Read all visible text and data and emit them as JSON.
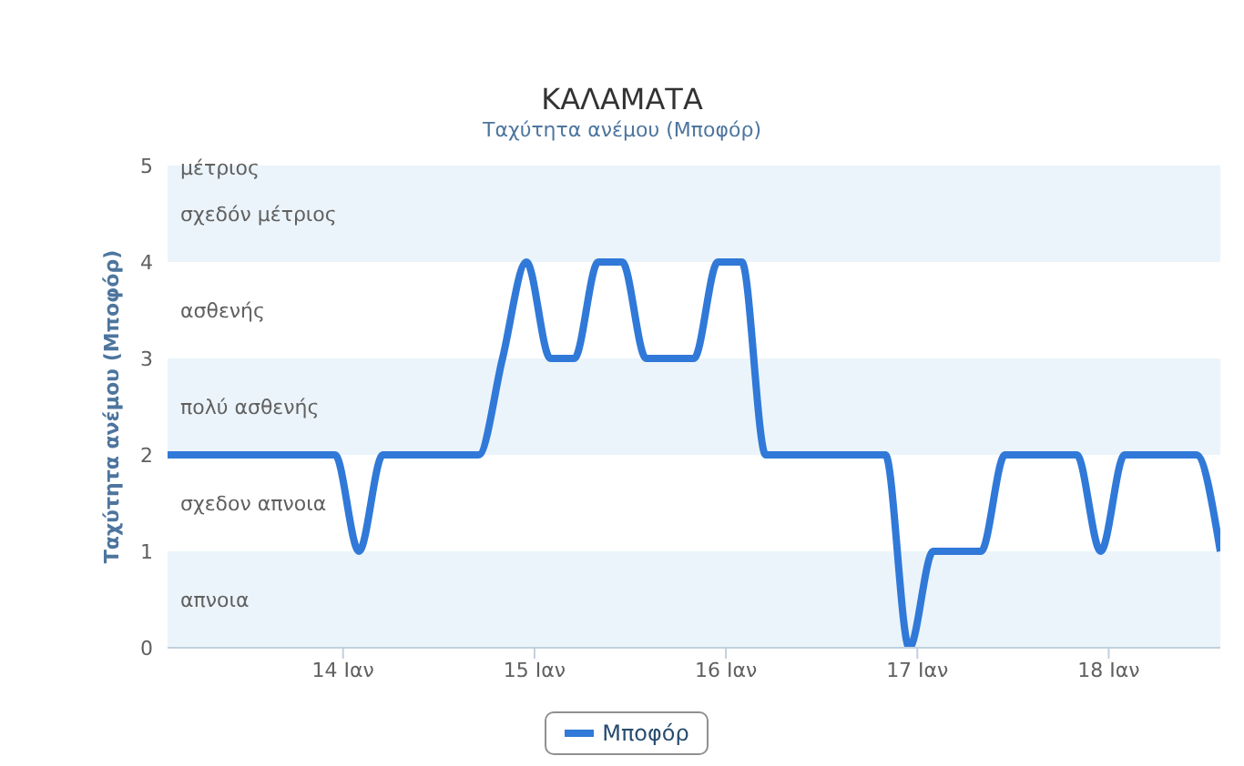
{
  "chart_data": {
    "type": "line",
    "title": "ΚΑΛΑΜΑΤΑ",
    "subtitle": "Ταχύτητα ανέμου (Μποφόρ)",
    "ylabel": "Ταχύτητα ανέμου (Μποφόρ)",
    "x": [
      13.083,
      13.208,
      13.333,
      13.458,
      13.583,
      13.708,
      13.833,
      13.958,
      14.083,
      14.208,
      14.333,
      14.458,
      14.583,
      14.708,
      14.833,
      14.958,
      15.083,
      15.208,
      15.333,
      15.458,
      15.583,
      15.708,
      15.833,
      15.958,
      16.083,
      16.208,
      16.333,
      16.458,
      16.583,
      16.708,
      16.833,
      16.958,
      17.083,
      17.208,
      17.333,
      17.458,
      17.583,
      17.708,
      17.833,
      17.958,
      18.083,
      18.208,
      18.333,
      18.458,
      18.583
    ],
    "series": [
      {
        "name": "Μποφόρ",
        "color": "#3079d8",
        "values": [
          2,
          2,
          2,
          2,
          2,
          2,
          2,
          2,
          1,
          2,
          2,
          2,
          2,
          2,
          3,
          4,
          3,
          3,
          4,
          4,
          3,
          3,
          3,
          4,
          4,
          2,
          2,
          2,
          2,
          2,
          2,
          0,
          1,
          1,
          1,
          2,
          2,
          2,
          2,
          1,
          2,
          2,
          2,
          2,
          1
        ]
      }
    ],
    "xlim": [
      13.083,
      18.583
    ],
    "xticks": [
      {
        "value": 14,
        "label": "14 Ιαν"
      },
      {
        "value": 15,
        "label": "15 Ιαν"
      },
      {
        "value": 16,
        "label": "16 Ιαν"
      },
      {
        "value": 17,
        "label": "17 Ιαν"
      },
      {
        "value": 18,
        "label": "18 Ιαν"
      }
    ],
    "ylim": [
      0,
      5
    ],
    "yticks": [
      0,
      1,
      2,
      3,
      4,
      5
    ],
    "bands": [
      {
        "axis": "y",
        "from": 0,
        "to": 1,
        "label": "απνοια",
        "color": "#ebf4fa"
      },
      {
        "axis": "y",
        "from": 2,
        "to": 3,
        "label": "πολύ ασθενής",
        "color": "#ebf4fa"
      },
      {
        "axis": "y",
        "from": 4,
        "to": 5,
        "label": "σχεδόν μέτριος",
        "color": "#ebf4fa"
      }
    ],
    "annotations": [
      "σχεδον απνοια",
      "ασθενής",
      {
        "text": "μέτριος",
        "y": 5
      }
    ],
    "grid": false,
    "legend": "bottom",
    "marker": "none",
    "line_style": "solid"
  }
}
